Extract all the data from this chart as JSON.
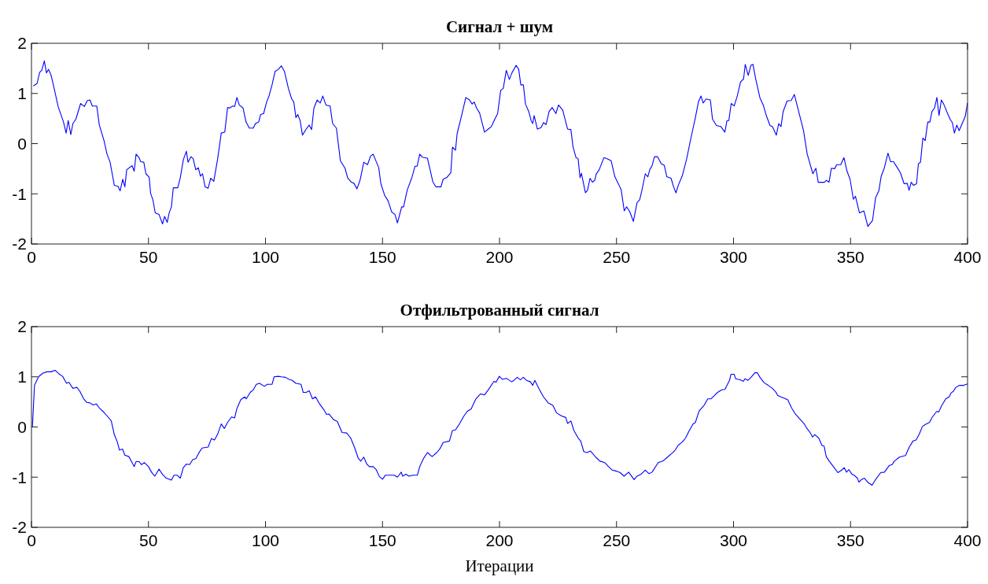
{
  "chart_data": [
    {
      "type": "line",
      "title": "Сигнал + шум",
      "xlim": [
        0,
        400
      ],
      "xticks": [
        0,
        50,
        100,
        150,
        200,
        250,
        300,
        350,
        400
      ],
      "ylim": [
        -2,
        2
      ],
      "yticks": [
        -2,
        -1,
        0,
        1,
        2
      ],
      "grid": false,
      "marker": "none",
      "line_style": "solid",
      "series": [
        {
          "color": "#0000ff",
          "x": [
            0.8,
            2.4,
            3.5,
            4.4,
            5.5,
            6.4,
            7.3,
            8.4,
            9.7,
            11.4,
            12.8,
            13.7,
            14.8,
            15.7,
            16.8,
            17.7,
            19,
            21,
            22.6,
            23.9,
            25,
            26,
            27.9,
            29,
            31,
            32.3,
            33.6,
            35.4,
            37,
            37.9,
            39,
            39.9,
            40.7,
            43,
            43.9,
            44.7,
            46,
            46.7,
            48,
            48.9,
            50.3,
            50.9,
            51.9,
            52.9,
            54.5,
            56,
            56.9,
            58,
            58.9,
            59.8,
            60.6,
            62.5,
            63.6,
            64.9,
            66.2,
            66.9,
            68.2,
            69.1,
            70.2,
            71.3,
            72.2,
            73.1,
            74.2,
            75.5,
            76.6,
            77.9,
            79.5,
            81.1,
            82.6,
            83.8,
            84.8,
            85.9,
            86.8,
            87.8,
            88.8,
            90.4,
            91.7,
            93.1,
            94.8,
            95.7,
            97.1,
            97.9,
            99.2,
            100.5,
            101.5,
            102.8,
            104.1,
            105.5,
            106.8,
            108.1,
            109.8,
            111.2,
            112.1,
            113,
            113.8,
            114.8,
            115.8,
            117.4,
            118.7,
            119.7,
            120.7,
            122.1,
            123.4,
            124.5,
            125.8,
            127.6,
            128.7,
            130.3,
            132,
            134,
            135.1,
            136.7,
            137.8,
            139.1,
            140.4,
            142,
            143.6,
            144.9,
            146,
            148.4,
            149.3,
            151,
            152.4,
            153.9,
            155.3,
            156.4,
            158.2,
            159,
            160.6,
            162.6,
            163.9,
            164.8,
            165.9,
            167,
            169.2,
            171.5,
            172.8,
            175,
            175.9,
            177.6,
            179.2,
            179.9,
            181.2,
            181.9,
            183.9,
            185.6,
            187.2,
            188.3,
            189.2,
            190.2,
            191.5,
            193.6,
            195.2,
            196.5,
            197.9,
            199.2,
            200.5,
            201.6,
            202.9,
            204.2,
            205.3,
            207.1,
            208.2,
            209.1,
            210.2,
            211.1,
            212.5,
            213.5,
            214.2,
            214.8,
            216.2,
            217.8,
            218.8,
            219.9,
            221.2,
            222.5,
            224.1,
            225.2,
            227,
            229.1,
            230.5,
            231.4,
            232.7,
            233.6,
            234.4,
            235,
            236.7,
            237.6,
            238.7,
            239.7,
            240.7,
            241.3,
            242.6,
            244.6,
            246.4,
            247.7,
            249.3,
            250.9,
            252,
            253.3,
            254.3,
            255.6,
            257.2,
            258.8,
            259.9,
            260.9,
            262.3,
            263.4,
            264.2,
            265.2,
            266.2,
            267.5,
            269.1,
            270.4,
            271.5,
            273.3,
            274.4,
            275.4,
            276.4,
            278.1,
            279.9,
            281.7,
            283.7,
            285,
            286.1,
            287,
            288.3,
            290.1,
            291,
            292.7,
            294.6,
            296.3,
            297.2,
            298,
            299,
            300.3,
            301.6,
            303,
            304.3,
            305,
            306.3,
            307.4,
            308.3,
            309.6,
            311.3,
            312.7,
            314,
            315.6,
            316.6,
            318.3,
            319.3,
            320.3,
            321.2,
            322.9,
            324.6,
            326,
            327.3,
            329.9,
            331.5,
            333.9,
            335.2,
            336.2,
            338.8,
            339.7,
            340.8,
            341.8,
            343.2,
            344.1,
            345.8,
            347.2,
            348.5,
            349.8,
            351.2,
            352.1,
            353.8,
            355.7,
            357.4,
            359.4,
            360.7,
            362.1,
            363.1,
            364.4,
            366,
            367.1,
            368.4,
            370,
            371.3,
            372.9,
            374.2,
            375,
            375.9,
            376.9,
            378.2,
            379,
            379.9,
            380.9,
            381.9,
            383,
            383.9,
            384.8,
            385.9,
            386.9,
            387.8,
            388.8,
            389.8,
            391.2,
            392.5,
            393.5,
            394.4,
            395.4,
            396.4,
            397.7,
            399,
            400
          ],
          "values": [
            1.15,
            1.2,
            1.42,
            1.46,
            1.65,
            1.41,
            1.48,
            1.36,
            1.1,
            0.74,
            0.55,
            0.43,
            0.21,
            0.46,
            0.18,
            0.4,
            0.49,
            0.8,
            0.74,
            0.86,
            0.87,
            0.75,
            0.75,
            0.37,
            0.06,
            -0.21,
            -0.37,
            -0.83,
            -0.85,
            -0.94,
            -0.71,
            -0.86,
            -0.52,
            -0.44,
            -0.55,
            -0.21,
            -0.28,
            -0.36,
            -0.37,
            -0.6,
            -0.67,
            -0.99,
            -1.12,
            -1.38,
            -1.41,
            -1.6,
            -1.45,
            -1.57,
            -1.37,
            -1.26,
            -0.88,
            -0.88,
            -0.68,
            -0.32,
            -0.15,
            -0.37,
            -0.26,
            -0.3,
            -0.52,
            -0.48,
            -0.65,
            -0.6,
            -0.86,
            -0.89,
            -0.69,
            -0.75,
            -0.32,
            0.21,
            0.23,
            0.72,
            0.71,
            0.75,
            0.74,
            0.92,
            0.77,
            0.71,
            0.43,
            0.31,
            0.31,
            0.4,
            0.43,
            0.58,
            0.6,
            0.83,
            0.95,
            1.17,
            1.44,
            1.48,
            1.55,
            1.44,
            1.1,
            0.89,
            0.83,
            0.52,
            0.58,
            0.46,
            0.17,
            0.29,
            0.37,
            0.28,
            0.71,
            0.87,
            0.81,
            0.95,
            0.77,
            0.75,
            0.4,
            0.31,
            -0.34,
            -0.49,
            -0.68,
            -0.77,
            -0.79,
            -0.9,
            -0.73,
            -0.37,
            -0.42,
            -0.25,
            -0.21,
            -0.48,
            -0.8,
            -1.04,
            -1.14,
            -1.36,
            -1.41,
            -1.58,
            -1.26,
            -1.26,
            -0.92,
            -0.67,
            -0.45,
            -0.45,
            -0.21,
            -0.27,
            -0.29,
            -0.76,
            -0.86,
            -0.86,
            -0.71,
            -0.67,
            -0.58,
            -0.07,
            -0.13,
            0.2,
            0.58,
            0.92,
            0.87,
            0.79,
            0.83,
            0.71,
            0.61,
            0.23,
            0.29,
            0.34,
            0.48,
            0.6,
            1.06,
            1.1,
            1.46,
            1.28,
            1.41,
            1.56,
            1.48,
            1.17,
            1.17,
            0.79,
            0.64,
            0.46,
            0.4,
            0.56,
            0.29,
            0.32,
            0.42,
            0.38,
            0.64,
            0.72,
            0.6,
            0.77,
            0.67,
            0.29,
            0.28,
            -0.06,
            -0.28,
            -0.3,
            -0.68,
            -0.59,
            -0.98,
            -0.93,
            -0.69,
            -0.77,
            -0.73,
            -0.61,
            -0.52,
            -0.28,
            -0.31,
            -0.34,
            -0.66,
            -0.81,
            -0.92,
            -1.34,
            -1.26,
            -1.35,
            -1.55,
            -1.17,
            -1.12,
            -0.92,
            -0.6,
            -0.66,
            -0.52,
            -0.44,
            -0.26,
            -0.26,
            -0.4,
            -0.43,
            -0.66,
            -0.69,
            -0.86,
            -0.98,
            -0.83,
            -0.64,
            -0.32,
            0.09,
            0.52,
            0.83,
            0.95,
            0.81,
            0.89,
            0.87,
            0.49,
            0.36,
            0.34,
            0.23,
            0.46,
            0.46,
            0.8,
            0.75,
            0.95,
            1.23,
            1.29,
            1.58,
            1.36,
            1.56,
            1.58,
            1.26,
            0.91,
            0.77,
            0.56,
            0.36,
            0.34,
            0.17,
            0.4,
            0.34,
            0.64,
            0.85,
            0.86,
            0.98,
            0.74,
            0.26,
            -0.21,
            -0.6,
            -0.49,
            -0.77,
            -0.77,
            -0.73,
            -0.77,
            -0.49,
            -0.5,
            -0.42,
            -0.42,
            -0.28,
            -0.55,
            -0.71,
            -1.11,
            -1.05,
            -1.38,
            -1.34,
            -1.65,
            -1.53,
            -1.08,
            -0.94,
            -0.65,
            -0.49,
            -0.19,
            -0.36,
            -0.36,
            -0.48,
            -0.58,
            -0.8,
            -0.79,
            -0.93,
            -0.77,
            -0.83,
            -0.8,
            -0.4,
            -0.37,
            0.11,
            0.06,
            0.43,
            0.43,
            0.64,
            0.71,
            0.92,
            0.56,
            0.87,
            0.79,
            0.63,
            0.49,
            0.42,
            0.21,
            0.37,
            0.26,
            0.4,
            0.54,
            0.81
          ]
        }
      ]
    },
    {
      "type": "line",
      "title": "Отфильтрованный сигнал",
      "xlabel": "Итерации",
      "xlim": [
        0,
        400
      ],
      "xticks": [
        0,
        50,
        100,
        150,
        200,
        250,
        300,
        350,
        400
      ],
      "ylim": [
        -2,
        2
      ],
      "yticks": [
        -2,
        -1,
        0,
        1,
        2
      ],
      "grid": false,
      "marker": "none",
      "line_style": "solid",
      "series": [
        {
          "color": "#0000ff",
          "x": [
            0.4,
            1.3,
            3,
            4.8,
            6.6,
            8.4,
            10.1,
            11.7,
            13.3,
            15,
            16,
            17.7,
            19.4,
            20.7,
            22.3,
            23.7,
            25,
            26.3,
            27.7,
            29,
            31,
            32.7,
            34.1,
            35.4,
            36.7,
            37.6,
            38.9,
            39.9,
            41.6,
            43,
            43.9,
            44.7,
            46,
            47,
            48.3,
            50,
            51.3,
            52.7,
            54.5,
            55.9,
            57.6,
            59.8,
            60.9,
            62.2,
            63.6,
            64.9,
            66.2,
            67.6,
            68.9,
            70.2,
            71.5,
            72.9,
            75.5,
            76.9,
            78.2,
            79.5,
            81.1,
            82.4,
            83.8,
            85.5,
            86.8,
            87.8,
            89.5,
            91.2,
            91.8,
            93.5,
            94.8,
            96.1,
            97.5,
            99.5,
            100.8,
            102.8,
            103.7,
            105.4,
            106.8,
            108.5,
            110.1,
            111.4,
            113,
            115.2,
            116.1,
            117.4,
            118.7,
            120.1,
            121.4,
            123.1,
            125,
            126.1,
            127.1,
            129,
            130.7,
            132.7,
            134.7,
            136.4,
            138,
            139.6,
            140.7,
            142,
            143.3,
            144.4,
            146,
            147.3,
            148.7,
            150,
            151.3,
            152.9,
            155,
            156.4,
            158,
            158.6,
            160,
            161.3,
            163,
            164.9,
            165.9,
            167.5,
            169.2,
            171.2,
            173.2,
            174.6,
            175.9,
            178.6,
            179.9,
            181.2,
            183,
            184.8,
            186.2,
            187.9,
            189.9,
            191.9,
            193.6,
            195.2,
            197.6,
            198.5,
            199.9,
            201.2,
            202.9,
            205.2,
            206.2,
            207.6,
            208.9,
            210.2,
            211.5,
            213.2,
            214.2,
            215.1,
            216.8,
            218.8,
            220.8,
            222.8,
            224.4,
            226.5,
            228.3,
            229.1,
            230.5,
            231.8,
            233.6,
            234.7,
            236,
            237.4,
            238.9,
            241.1,
            242.9,
            245,
            246.6,
            248.2,
            249.9,
            251.6,
            253.2,
            255.2,
            256.6,
            257.5,
            258.8,
            260.5,
            262.3,
            263.9,
            265.2,
            267.8,
            269.8,
            271.8,
            273.8,
            275.1,
            276.4,
            278.1,
            279.5,
            281.1,
            282.7,
            283.7,
            285.3,
            287.4,
            289,
            290.3,
            291.9,
            293.2,
            295,
            296.3,
            297,
            298.3,
            298.9,
            300.3,
            300.9,
            302.9,
            304.2,
            304.9,
            306.2,
            307.5,
            309.1,
            310.2,
            311.3,
            313.1,
            314.8,
            316.6,
            318.2,
            318.8,
            320.2,
            321.9,
            323.2,
            324.8,
            326.4,
            328.5,
            330.1,
            331.4,
            332.7,
            333.8,
            334.7,
            336.4,
            337.8,
            338.7,
            339.6,
            340.9,
            343,
            344.6,
            346.2,
            347.3,
            348.3,
            349.3,
            350.6,
            351.5,
            352.9,
            353.6,
            354.6,
            355.9,
            357.6,
            359.2,
            360.8,
            362.9,
            364.5,
            366.5,
            367.8,
            368.7,
            370.9,
            373.5,
            375.1,
            376.7,
            378,
            379.3,
            380.7,
            382,
            383.7,
            385,
            386.8,
            387.7,
            389,
            390.7,
            392.1,
            393,
            393.9,
            395,
            396.6,
            398.3,
            400
          ],
          "values": [
            0,
            0.83,
            1.0,
            1.07,
            1.1,
            1.1,
            1.13,
            1.06,
            1.01,
            0.87,
            0.89,
            0.77,
            0.79,
            0.71,
            0.56,
            0.49,
            0.48,
            0.44,
            0.46,
            0.38,
            0.29,
            0.2,
            0.12,
            -0.15,
            -0.3,
            -0.46,
            -0.44,
            -0.56,
            -0.59,
            -0.71,
            -0.79,
            -0.69,
            -0.69,
            -0.75,
            -0.71,
            -0.79,
            -0.9,
            -0.98,
            -0.84,
            -0.94,
            -1.02,
            -1.06,
            -0.96,
            -0.96,
            -1.02,
            -0.81,
            -0.74,
            -0.75,
            -0.65,
            -0.63,
            -0.52,
            -0.42,
            -0.4,
            -0.23,
            -0.26,
            -0.15,
            0.06,
            -0.03,
            0.09,
            0.2,
            0.18,
            0.37,
            0.55,
            0.6,
            0.56,
            0.69,
            0.74,
            0.85,
            0.87,
            0.81,
            0.85,
            0.85,
            1.0,
            1.01,
            1.0,
            0.99,
            0.95,
            0.93,
            0.87,
            0.85,
            0.69,
            0.69,
            0.72,
            0.56,
            0.6,
            0.46,
            0.34,
            0.25,
            0.26,
            0.15,
            0.11,
            -0.11,
            -0.12,
            -0.22,
            -0.4,
            -0.62,
            -0.68,
            -0.6,
            -0.74,
            -0.79,
            -0.79,
            -0.85,
            -0.99,
            -1.04,
            -0.96,
            -0.96,
            -0.96,
            -1.0,
            -0.9,
            -0.98,
            -0.94,
            -0.98,
            -0.96,
            -0.96,
            -0.79,
            -0.63,
            -0.51,
            -0.59,
            -0.51,
            -0.43,
            -0.31,
            -0.28,
            -0.07,
            -0.06,
            0.07,
            0.22,
            0.31,
            0.36,
            0.56,
            0.66,
            0.64,
            0.74,
            0.91,
            0.89,
            1.01,
            0.95,
            0.97,
            0.9,
            0.93,
            0.99,
            0.94,
            0.99,
            0.93,
            0.9,
            0.83,
            0.93,
            0.77,
            0.6,
            0.48,
            0.43,
            0.28,
            0.22,
            0.19,
            0.07,
            0.12,
            -0.07,
            -0.22,
            -0.28,
            -0.49,
            -0.51,
            -0.48,
            -0.6,
            -0.68,
            -0.71,
            -0.79,
            -0.86,
            -0.88,
            -0.91,
            -0.98,
            -0.9,
            -0.99,
            -1.05,
            -0.98,
            -0.94,
            -0.86,
            -0.93,
            -0.9,
            -0.71,
            -0.68,
            -0.6,
            -0.52,
            -0.46,
            -0.36,
            -0.3,
            -0.22,
            -0.07,
            0.06,
            0.09,
            0.32,
            0.43,
            0.56,
            0.56,
            0.63,
            0.69,
            0.74,
            0.75,
            0.81,
            0.93,
            1.05,
            1.05,
            0.96,
            0.94,
            0.91,
            0.96,
            0.93,
            0.99,
            1.08,
            1.08,
            0.99,
            0.88,
            0.83,
            0.77,
            0.69,
            0.63,
            0.6,
            0.57,
            0.54,
            0.38,
            0.26,
            0.15,
            0.07,
            -0.03,
            -0.11,
            -0.2,
            -0.15,
            -0.22,
            -0.37,
            -0.38,
            -0.59,
            -0.68,
            -0.81,
            -0.91,
            -0.86,
            -0.81,
            -0.9,
            -0.85,
            -0.94,
            -0.96,
            -1.02,
            -1.1,
            -1.05,
            -1.02,
            -1.11,
            -1.16,
            -1.04,
            -0.91,
            -0.9,
            -0.77,
            -0.75,
            -0.68,
            -0.6,
            -0.57,
            -0.4,
            -0.28,
            -0.26,
            -0.15,
            0.01,
            0.05,
            0.09,
            0.2,
            0.31,
            0.3,
            0.43,
            0.56,
            0.6,
            0.68,
            0.71,
            0.79,
            0.83,
            0.83,
            0.86
          ]
        }
      ]
    }
  ]
}
